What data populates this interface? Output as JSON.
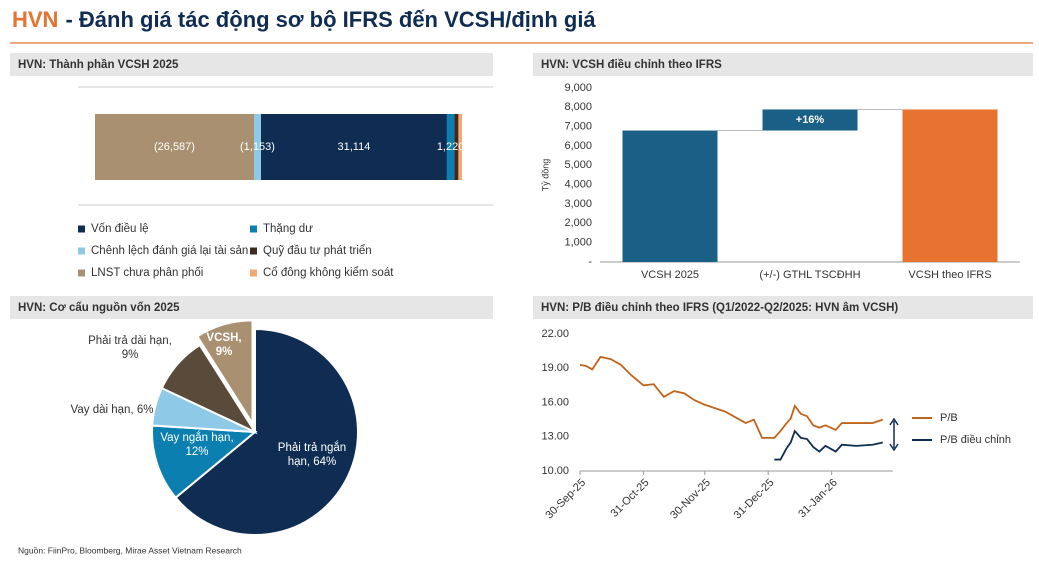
{
  "header": {
    "prefix": "HVN",
    "title": "- Đánh giá tác động sơ bộ IFRS đến VCSH/định giá"
  },
  "chart_data": [
    {
      "type": "stacked_bar_h",
      "title": "HVN: Thành phần VCSH 2025",
      "series": [
        {
          "name": "Vốn điều lệ",
          "color": "#0f2d52",
          "values": [
            31114
          ],
          "value_labels": [
            "31,114"
          ]
        },
        {
          "name": "Thặng dư",
          "color": "#0a7fb0",
          "values": [
            1220
          ],
          "value_labels": [
            "1,220"
          ]
        },
        {
          "name": "Chênh lệch đánh giá lại tài sản",
          "color": "#8ec9e8",
          "values": [
            -1153
          ],
          "value_labels": [
            "(1,153)"
          ]
        },
        {
          "name": "Quỹ đầu tư phát triển",
          "color": "#3b2a1f",
          "values": [
            700
          ],
          "value_labels": [
            null
          ]
        },
        {
          "name": "LNST chưa phân phối",
          "color": "#a89070",
          "values": [
            -26587
          ],
          "value_labels": [
            "(26,587)"
          ]
        },
        {
          "name": "Cổ đông không kiểm soát",
          "color": "#f2a870",
          "values": [
            600
          ],
          "value_labels": [
            null
          ]
        }
      ]
    },
    {
      "type": "waterfall",
      "title": "HVN: VCSH điều chỉnh theo IFRS",
      "y_label": "Tỷ đồng",
      "categories": [
        "VCSH 2025",
        "(+/-) GTHL TSCĐHH",
        "VCSH theo IFRS"
      ],
      "measures": [
        "absolute",
        "relative",
        "total"
      ],
      "values": [
        6800,
        1090,
        7890
      ],
      "colors": [
        "#1a5f86",
        "#1a5f86",
        "#e87330"
      ],
      "annotation": "+16%",
      "ylim": [
        0,
        9000
      ],
      "yticks": [
        {
          "value": 0,
          "label": "-"
        },
        {
          "value": 1000,
          "label": "1,000"
        },
        {
          "value": 2000,
          "label": "2,000"
        },
        {
          "value": 3000,
          "label": "3,000"
        },
        {
          "value": 4000,
          "label": "4,000"
        },
        {
          "value": 5000,
          "label": "5,000"
        },
        {
          "value": 6000,
          "label": "6,000"
        },
        {
          "value": 7000,
          "label": "7,000"
        },
        {
          "value": 8000,
          "label": "8,000"
        },
        {
          "value": 9000,
          "label": "9,000"
        }
      ]
    },
    {
      "type": "pie",
      "title": "HVN: Cơ cấu nguồn vốn 2025",
      "categories": [
        "Phải trả ngắn hạn",
        "Vay ngắn hạn",
        "Vay dài hạn",
        "Phải trả dài hạn",
        "VCSH"
      ],
      "values": [
        64,
        12,
        6,
        9,
        9
      ],
      "labels": [
        [
          "Phải trả ngắn",
          "hạn, 64%"
        ],
        [
          "Vay ngắn hạn,",
          "12%"
        ],
        [
          "Vay dài hạn, 6%"
        ],
        [
          "Phải trả dài hạn,",
          "9%"
        ],
        [
          "VCSH,",
          "9%"
        ]
      ],
      "colors": [
        "#0f2d52",
        "#0a7fb0",
        "#8ec9e8",
        "#5a4a3a",
        "#a89070"
      ],
      "exploded": [
        false,
        false,
        false,
        false,
        true
      ]
    },
    {
      "type": "line",
      "title": "HVN: P/B điều chỉnh theo IFRS (Q1/2022-Q2/2025: HVN âm VCSH)",
      "x": [
        "30-Sep-25",
        "03-Oct-25",
        "06-Oct-25",
        "10-Oct-25",
        "15-Oct-25",
        "20-Oct-25",
        "25-Oct-25",
        "31-Oct-25",
        "05-Nov-25",
        "10-Nov-25",
        "15-Nov-25",
        "20-Nov-25",
        "25-Nov-25",
        "30-Nov-25",
        "05-Dec-25",
        "10-Dec-25",
        "15-Dec-25",
        "20-Dec-25",
        "24-Dec-25",
        "28-Dec-25",
        "03-Jan-26",
        "06-Jan-26",
        "09-Jan-26",
        "11-Jan-26",
        "13-Jan-26",
        "16-Jan-26",
        "19-Jan-26",
        "22-Jan-26",
        "25-Jan-26",
        "28-Jan-26",
        "02-Feb-26",
        "05-Feb-26",
        "12-Feb-26",
        "20-Feb-26",
        "25-Feb-26"
      ],
      "series": [
        {
          "name": "P/B",
          "color": "#c0641b",
          "values": [
            19.3,
            19.2,
            18.9,
            20.0,
            19.8,
            19.3,
            18.4,
            17.5,
            17.6,
            16.5,
            17.0,
            16.8,
            16.2,
            15.8,
            15.5,
            15.2,
            14.7,
            14.2,
            14.5,
            12.9,
            12.9,
            13.5,
            14.2,
            14.6,
            15.7,
            15.0,
            14.8,
            14.0,
            13.8,
            14.0,
            13.6,
            14.2,
            14.2,
            14.2,
            14.5
          ]
        },
        {
          "name": "P/B điều chỉnh",
          "color": "#0f2d52",
          "values": [
            null,
            null,
            null,
            null,
            null,
            null,
            null,
            null,
            null,
            null,
            null,
            null,
            null,
            null,
            null,
            null,
            null,
            null,
            null,
            null,
            11.0,
            11.0,
            12.0,
            12.5,
            13.5,
            12.9,
            12.8,
            12.1,
            11.7,
            12.2,
            11.7,
            12.3,
            12.2,
            12.3,
            12.5
          ]
        }
      ],
      "xlim": [
        "30-Sep-25",
        "02-Mar-26"
      ],
      "xticks": [
        "30-Sep-25",
        "31-Oct-25",
        "30-Nov-25",
        "31-Dec-25",
        "31-Jan-26"
      ],
      "ylim": [
        10,
        22
      ],
      "yticks": [
        {
          "value": 10,
          "label": "10.00"
        },
        {
          "value": 13,
          "label": "13.00"
        },
        {
          "value": 16,
          "label": "16.00"
        },
        {
          "value": 19,
          "label": "19.00"
        },
        {
          "value": 22,
          "label": "22.00"
        }
      ]
    }
  ],
  "source": "Nguồn: FiinPro, Bloomberg, Mirae Asset Vietnam Research"
}
